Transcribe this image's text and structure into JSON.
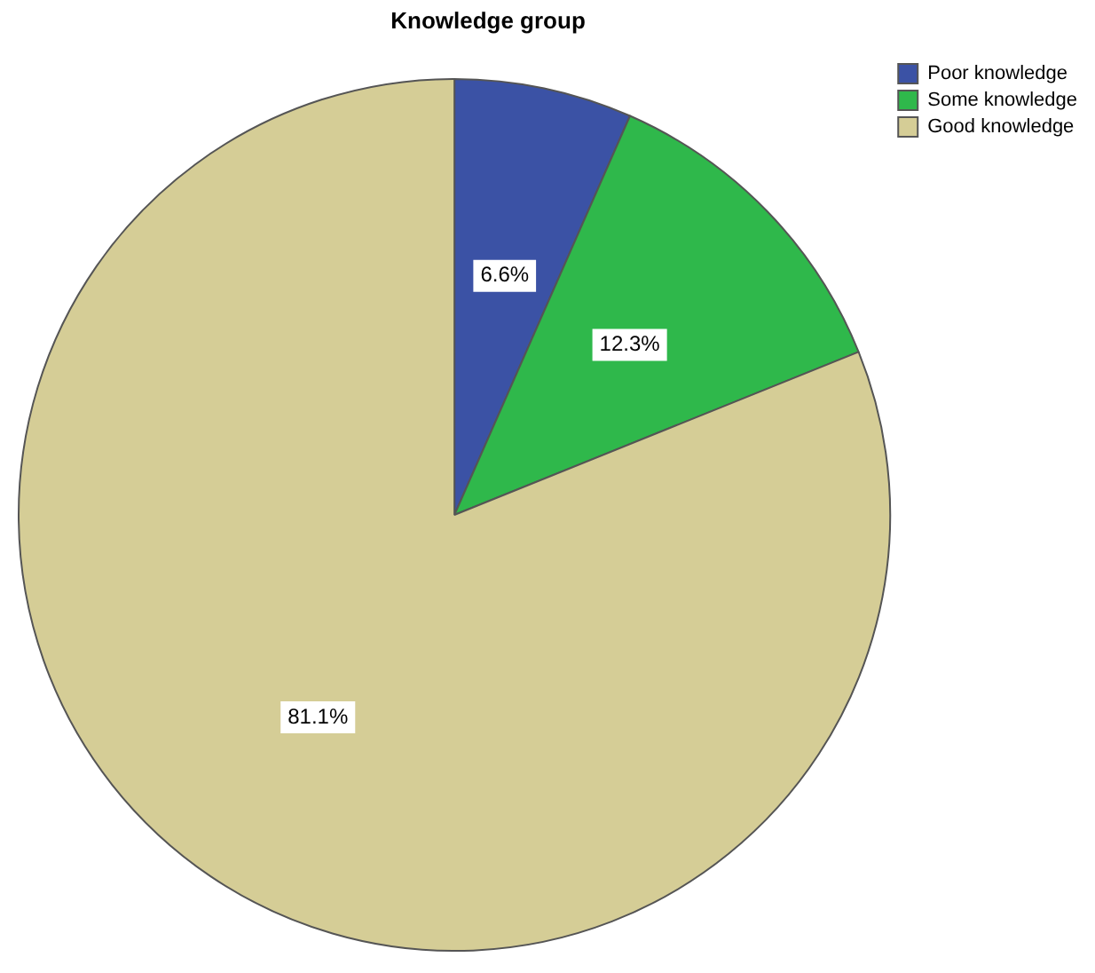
{
  "chart_data": {
    "type": "pie",
    "title": "Knowledge group",
    "categories": [
      "Poor knowledge",
      "Some knowledge",
      "Good knowledge"
    ],
    "values": [
      6.6,
      12.3,
      81.1
    ],
    "colors": [
      "#3b52a5",
      "#2fb84b",
      "#d5cd96"
    ],
    "value_labels": [
      "6.6%",
      "12.3%",
      "81.1%"
    ],
    "legend": "top right"
  }
}
